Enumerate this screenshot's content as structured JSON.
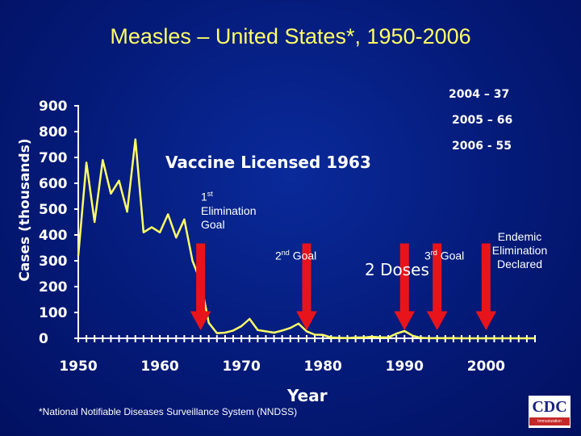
{
  "title": "Measles – United States*, 1950-2006",
  "annotations": {
    "recent_2004": "2004 – 37",
    "recent_2005": "2005 – 66",
    "recent_2006": "2006 - 55",
    "vaccine": "Vaccine Licensed 1963",
    "first_goal_num": "1",
    "first_goal_sup": "st",
    "first_goal_line1": "Elimination",
    "first_goal_line2": "Goal",
    "second_goal_num": "2",
    "second_goal_sup": "nd",
    "second_goal_text": "Goal",
    "two_doses": "2 Doses",
    "third_goal_num": "3",
    "third_goal_sup": "rd",
    "third_goal_text": "Goal",
    "endemic_line1": "Endemic",
    "endemic_line2": "Elimination",
    "endemic_line3": "Declared"
  },
  "footnote": "*National Notifiable Diseases Surveillance System (NNDSS)",
  "logo": {
    "text": "CDC",
    "subtext": "Immunization"
  },
  "colors": {
    "background": "#041a78",
    "line": "#ffff66",
    "arrow": "#e8141c",
    "title": "#ffff66",
    "text": "#ffffff"
  },
  "chart_data": {
    "type": "line",
    "title": "Measles – United States*, 1950-2006",
    "xlabel": "Year",
    "ylabel": "Cases (thousands)",
    "xlim": [
      1950,
      2006
    ],
    "ylim": [
      0,
      900
    ],
    "yticks": [
      0,
      100,
      200,
      300,
      400,
      500,
      600,
      700,
      800,
      900
    ],
    "xtick_labels": [
      1950,
      1960,
      1970,
      1980,
      1990,
      2000
    ],
    "series": [
      {
        "x": [
          1950,
          1951,
          1952,
          1953,
          1954,
          1955,
          1956,
          1957,
          1958,
          1959,
          1960,
          1961,
          1962,
          1963,
          1964,
          1965,
          1966,
          1967,
          1968,
          1969,
          1970,
          1971,
          1972,
          1973,
          1974,
          1975,
          1976,
          1977,
          1978,
          1979,
          1980,
          1981,
          1982,
          1983,
          1984,
          1985,
          1986,
          1987,
          1988,
          1989,
          1990,
          1991,
          1992,
          1993,
          1994,
          1995,
          1996,
          1997,
          1998,
          1999,
          2000,
          2001,
          2002,
          2003,
          2004,
          2005,
          2006
        ],
        "y": [
          320,
          680,
          450,
          690,
          560,
          610,
          490,
          770,
          410,
          430,
          410,
          480,
          390,
          460,
          300,
          220,
          60,
          20,
          22,
          30,
          47,
          75,
          32,
          27,
          22,
          30,
          40,
          57,
          27,
          14,
          13,
          3,
          2,
          1,
          3,
          3,
          6,
          4,
          3,
          18,
          28,
          10,
          2,
          0.3,
          1,
          0.3,
          0.5,
          0.1,
          0.1,
          0.1,
          0.1,
          0.1,
          0.04,
          0.06,
          0.037,
          0.066,
          0.055
        ]
      }
    ],
    "arrows_at_year": [
      1965,
      1978,
      1990,
      1994,
      2000
    ]
  }
}
